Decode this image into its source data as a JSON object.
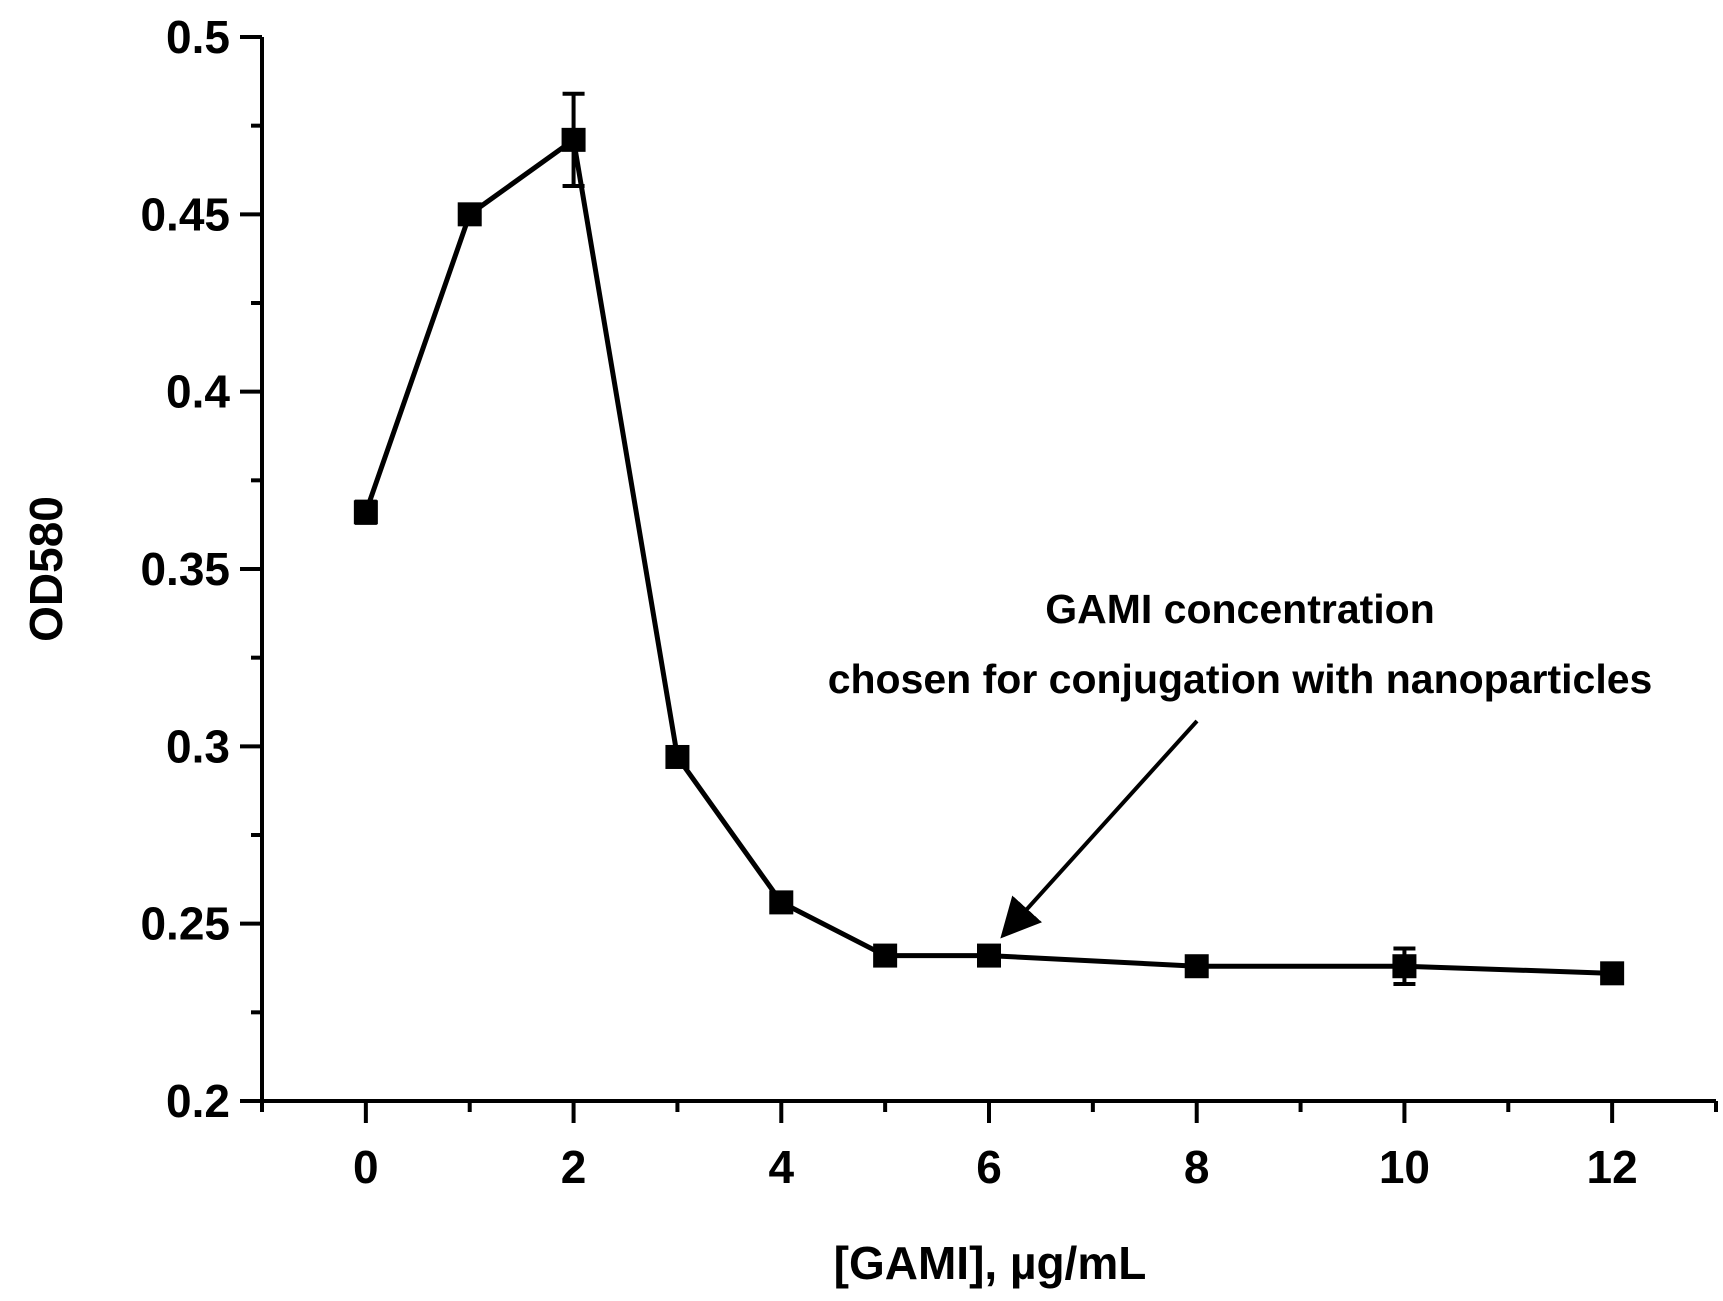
{
  "chart_data": {
    "type": "line",
    "title": "",
    "xlabel": "[GAMI], µg/mL",
    "ylabel": "OD580",
    "xlim": [
      -1,
      13
    ],
    "ylim": [
      0.2,
      0.5
    ],
    "grid": false,
    "x_ticks": [
      0,
      2,
      4,
      6,
      8,
      10,
      12
    ],
    "x_tick_labels": [
      "0",
      "2",
      "4",
      "6",
      "8",
      "10",
      "12"
    ],
    "x_minor_ticks": [
      -1,
      1,
      3,
      5,
      7,
      9,
      11,
      13
    ],
    "y_ticks": [
      0.2,
      0.25,
      0.3,
      0.35,
      0.4,
      0.45,
      0.5
    ],
    "y_tick_labels": [
      "0.2",
      "0.25",
      "0.3",
      "0.35",
      "0.4",
      "0.45",
      "0.5"
    ],
    "y_minor_ticks": [
      0.225,
      0.275,
      0.325,
      0.375,
      0.425,
      0.475
    ],
    "series": [
      {
        "name": "OD580",
        "marker": "square",
        "color": "#000000",
        "x": [
          0,
          1,
          2,
          3,
          4,
          5,
          6,
          8,
          10,
          12
        ],
        "y": [
          0.366,
          0.45,
          0.471,
          0.297,
          0.256,
          0.241,
          0.241,
          0.238,
          0.238,
          0.236
        ],
        "error": [
          0.003,
          0,
          0.013,
          0,
          0,
          0,
          0,
          0,
          0.005,
          0
        ]
      }
    ],
    "annotations": [
      {
        "lines": [
          "GAMI concentration",
          "chosen for conjugation with nanoparticles"
        ],
        "arrow_target": {
          "x": 6,
          "y": 0.241
        }
      }
    ]
  }
}
